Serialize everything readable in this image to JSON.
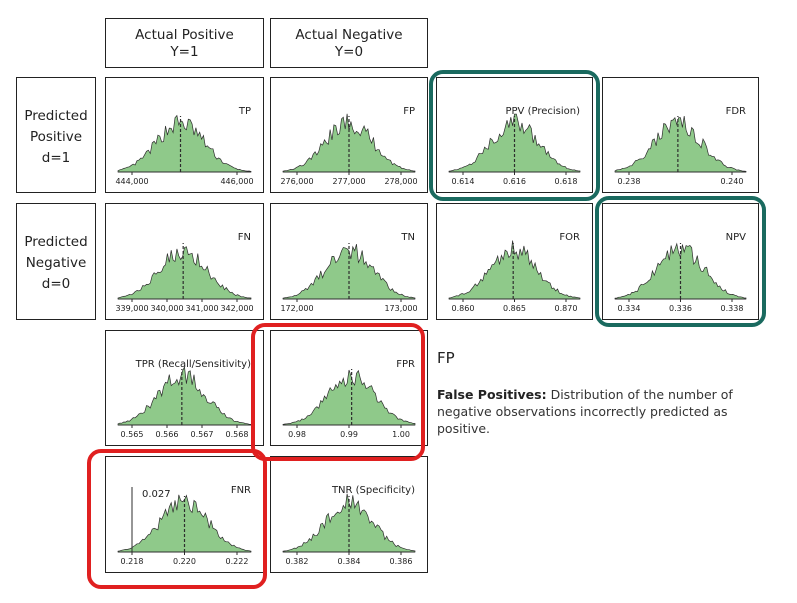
{
  "headers": {
    "actual_positive": "Actual Positive",
    "actual_positive_sub": "Y=1",
    "actual_negative": "Actual Negative",
    "actual_negative_sub": "Y=0"
  },
  "rows": {
    "pred_pos_1": "Predicted",
    "pred_pos_2": "Positive",
    "pred_pos_3": "d=1",
    "pred_neg_1": "Predicted",
    "pred_neg_2": "Negative",
    "pred_neg_3": "d=0"
  },
  "description": {
    "title": "FP",
    "bold": "False Positives:",
    "text": " Distribution of the number of negative observations incorrectly predicted as positive."
  },
  "colors": {
    "fill": "#8fc98a",
    "stroke": "#2d2d2d",
    "highlight_teal": "#1a6a5f",
    "highlight_red": "#e02020"
  },
  "chart_data": [
    {
      "id": "tp",
      "type": "area",
      "title": "TP",
      "ticks": [
        "444,000",
        "446,000"
      ],
      "mean_frac": 0.47
    },
    {
      "id": "fp",
      "type": "area",
      "title": "FP",
      "ticks": [
        "276,000",
        "277,000",
        "278,000"
      ],
      "mean_frac": 0.5
    },
    {
      "id": "ppv",
      "type": "area",
      "title": "PPV (Precision)",
      "ticks": [
        "0.614",
        "0.616",
        "0.618"
      ],
      "mean_frac": 0.5
    },
    {
      "id": "fdr",
      "type": "area",
      "title": "FDR",
      "ticks": [
        "0.238",
        "0.240"
      ],
      "mean_frac": 0.48
    },
    {
      "id": "fn",
      "type": "area",
      "title": "FN",
      "ticks": [
        "339,000",
        "340,000",
        "341,000",
        "342,000"
      ],
      "mean_frac": 0.49
    },
    {
      "id": "tn",
      "type": "area",
      "title": "TN",
      "ticks": [
        "172,000",
        "173,000"
      ],
      "mean_frac": 0.5
    },
    {
      "id": "for",
      "type": "area",
      "title": "FOR",
      "ticks": [
        "0.860",
        "0.865",
        "0.870"
      ],
      "mean_frac": 0.49
    },
    {
      "id": "npv",
      "type": "area",
      "title": "NPV",
      "ticks": [
        "0.334",
        "0.336",
        "0.338"
      ],
      "mean_frac": 0.5
    },
    {
      "id": "tpr",
      "type": "area",
      "title": "TPR (Recall/Sensitivity)",
      "ticks": [
        "0.565",
        "0.566",
        "0.567",
        "0.568"
      ],
      "mean_frac": 0.48
    },
    {
      "id": "fpr",
      "type": "area",
      "title": "FPR",
      "ticks": [
        "0.98",
        "0.99",
        "1.00"
      ],
      "mean_frac": 0.52
    },
    {
      "id": "fnr",
      "type": "area",
      "title": "FNR",
      "ticks": [
        "0.218",
        "0.220",
        "0.222"
      ],
      "mean_frac": 0.5,
      "annotation": "0.027"
    },
    {
      "id": "tnr",
      "type": "area",
      "title": "TNR (Specificity)",
      "ticks": [
        "0.382",
        "0.384",
        "0.386"
      ],
      "mean_frac": 0.5
    }
  ]
}
